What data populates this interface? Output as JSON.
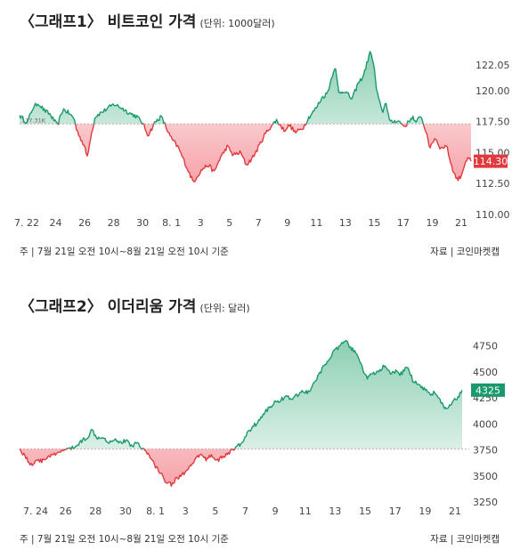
{
  "chart_data": [
    {
      "type": "area",
      "title": "〈그래프1〉 비트코인 가격",
      "unit": "(단위: 1000달러)",
      "x_ticks": [
        "7. 22",
        "24",
        "26",
        "28",
        "30",
        "8. 1",
        "3",
        "5",
        "7",
        "9",
        "11",
        "13",
        "15",
        "17",
        "19",
        "21"
      ],
      "y_ticks": [
        "122.05",
        "120.00",
        "117.50",
        "115.00",
        "112.50",
        "110.00"
      ],
      "ylim": [
        110.0,
        123.0
      ],
      "baseline": 117.31,
      "baseline_label": "117.31K",
      "last_value": 114.3,
      "last_label": "114.30",
      "anchors": [
        [
          0,
          118.0
        ],
        [
          0.04,
          117.4
        ],
        [
          0.07,
          118.6
        ],
        [
          0.1,
          119.0
        ],
        [
          0.13,
          118.4
        ],
        [
          0.16,
          118.1
        ],
        [
          0.2,
          117.2
        ],
        [
          0.23,
          118.5
        ],
        [
          0.26,
          118.2
        ],
        [
          0.29,
          117.7
        ],
        [
          0.3,
          116.9
        ],
        [
          0.34,
          115.6
        ],
        [
          0.36,
          114.6
        ],
        [
          0.37,
          115.8
        ],
        [
          0.4,
          117.9
        ],
        [
          0.45,
          118.4
        ],
        [
          0.5,
          118.9
        ],
        [
          0.54,
          118.6
        ],
        [
          0.58,
          118.2
        ],
        [
          0.62,
          117.9
        ],
        [
          0.65,
          117.4
        ],
        [
          0.68,
          116.4
        ],
        [
          0.72,
          117.5
        ],
        [
          0.75,
          117.9
        ],
        [
          0.8,
          116.2
        ],
        [
          0.84,
          115.4
        ],
        [
          0.88,
          114.0
        ],
        [
          0.9,
          113.3
        ],
        [
          0.92,
          112.6
        ],
        [
          0.94,
          113.1
        ],
        [
          0.97,
          113.7
        ],
        [
          1.0,
          114.0
        ],
        [
          1.03,
          113.4
        ],
        [
          1.06,
          114.5
        ],
        [
          1.1,
          115.5
        ],
        [
          1.13,
          114.8
        ],
        [
          1.17,
          115.0
        ],
        [
          1.2,
          114.0
        ],
        [
          1.23,
          114.5
        ],
        [
          1.26,
          115.3
        ],
        [
          1.3,
          116.5
        ],
        [
          1.33,
          117.1
        ],
        [
          1.36,
          117.6
        ],
        [
          1.4,
          116.8
        ],
        [
          1.43,
          117.2
        ],
        [
          1.46,
          116.6
        ],
        [
          1.5,
          117.0
        ],
        [
          1.53,
          117.8
        ],
        [
          1.57,
          118.6
        ],
        [
          1.6,
          119.4
        ],
        [
          1.63,
          119.8
        ],
        [
          1.66,
          121.5
        ],
        [
          1.67,
          122.0
        ],
        [
          1.69,
          119.8
        ],
        [
          1.72,
          120.0
        ],
        [
          1.76,
          119.3
        ],
        [
          1.79,
          120.5
        ],
        [
          1.82,
          121.2
        ],
        [
          1.85,
          122.8
        ],
        [
          1.86,
          123.2
        ],
        [
          1.88,
          121.5
        ],
        [
          1.89,
          120.0
        ],
        [
          1.92,
          118.2
        ],
        [
          1.94,
          119.1
        ],
        [
          1.96,
          117.4
        ],
        [
          2.0,
          117.6
        ],
        [
          2.04,
          117.1
        ],
        [
          2.08,
          117.9
        ],
        [
          2.1,
          117.3
        ],
        [
          2.12,
          118.1
        ],
        [
          2.15,
          116.8
        ],
        [
          2.17,
          115.4
        ],
        [
          2.2,
          116.2
        ],
        [
          2.23,
          115.3
        ],
        [
          2.26,
          115.6
        ],
        [
          2.28,
          114.3
        ],
        [
          2.3,
          113.3
        ],
        [
          2.32,
          112.8
        ],
        [
          2.34,
          113.2
        ],
        [
          2.36,
          114.3
        ],
        [
          2.38,
          114.5
        ],
        [
          2.39,
          114.3
        ]
      ]
    },
    {
      "type": "area",
      "title": "〈그래프2〉 이더리움 가격",
      "unit": "(단위: 달러)",
      "x_ticks": [
        "7. 24",
        "26",
        "28",
        "30",
        "8. 1",
        "3",
        "5",
        "7",
        "9",
        "11",
        "13",
        "15",
        "17",
        "19",
        "21"
      ],
      "y_ticks": [
        "4750",
        "4500",
        "4250",
        "4000",
        "3750",
        "3500",
        "3250"
      ],
      "ylim": [
        3250,
        4850
      ],
      "baseline": 3760,
      "last_value": 4325,
      "last_label": "4325",
      "anchors": [
        [
          0,
          3760
        ],
        [
          0.03,
          3690
        ],
        [
          0.06,
          3600
        ],
        [
          0.09,
          3660
        ],
        [
          0.12,
          3640
        ],
        [
          0.15,
          3690
        ],
        [
          0.18,
          3700
        ],
        [
          0.21,
          3720
        ],
        [
          0.24,
          3760
        ],
        [
          0.27,
          3760
        ],
        [
          0.3,
          3790
        ],
        [
          0.33,
          3840
        ],
        [
          0.36,
          3880
        ],
        [
          0.38,
          3940
        ],
        [
          0.41,
          3870
        ],
        [
          0.44,
          3880
        ],
        [
          0.47,
          3820
        ],
        [
          0.5,
          3860
        ],
        [
          0.53,
          3820
        ],
        [
          0.56,
          3840
        ],
        [
          0.59,
          3790
        ],
        [
          0.62,
          3820
        ],
        [
          0.65,
          3760
        ],
        [
          0.68,
          3700
        ],
        [
          0.71,
          3610
        ],
        [
          0.74,
          3530
        ],
        [
          0.77,
          3450
        ],
        [
          0.8,
          3420
        ],
        [
          0.83,
          3480
        ],
        [
          0.86,
          3520
        ],
        [
          0.89,
          3560
        ],
        [
          0.92,
          3640
        ],
        [
          0.95,
          3710
        ],
        [
          0.98,
          3660
        ],
        [
          1.01,
          3700
        ],
        [
          1.04,
          3650
        ],
        [
          1.07,
          3680
        ],
        [
          1.1,
          3720
        ],
        [
          1.13,
          3760
        ],
        [
          1.16,
          3800
        ],
        [
          1.19,
          3880
        ],
        [
          1.22,
          3960
        ],
        [
          1.25,
          4010
        ],
        [
          1.28,
          4080
        ],
        [
          1.31,
          4150
        ],
        [
          1.34,
          4200
        ],
        [
          1.37,
          4230
        ],
        [
          1.4,
          4260
        ],
        [
          1.43,
          4240
        ],
        [
          1.46,
          4270
        ],
        [
          1.49,
          4320
        ],
        [
          1.52,
          4300
        ],
        [
          1.55,
          4390
        ],
        [
          1.58,
          4480
        ],
        [
          1.61,
          4580
        ],
        [
          1.64,
          4660
        ],
        [
          1.67,
          4720
        ],
        [
          1.7,
          4770
        ],
        [
          1.72,
          4790
        ],
        [
          1.75,
          4720
        ],
        [
          1.78,
          4650
        ],
        [
          1.8,
          4560
        ],
        [
          1.83,
          4440
        ],
        [
          1.86,
          4480
        ],
        [
          1.89,
          4500
        ],
        [
          1.92,
          4560
        ],
        [
          1.95,
          4480
        ],
        [
          1.98,
          4500
        ],
        [
          2.01,
          4480
        ],
        [
          2.04,
          4560
        ],
        [
          2.07,
          4420
        ],
        [
          2.1,
          4380
        ],
        [
          2.13,
          4340
        ],
        [
          2.16,
          4290
        ],
        [
          2.19,
          4300
        ],
        [
          2.22,
          4200
        ],
        [
          2.25,
          4130
        ],
        [
          2.28,
          4210
        ],
        [
          2.31,
          4250
        ],
        [
          2.33,
          4325
        ]
      ]
    }
  ],
  "footer": {
    "basis": "주 | 7월 21일 오전 10시~8월 21일 오전 10시 기준",
    "source": "자료 | 코인마켓캡"
  },
  "colors": {
    "up": "#1a9a6c",
    "down": "#e03a3e",
    "up_fill_top": "#7fcaaa",
    "down_fill_top": "#f59aa0",
    "badge_up": "#1a9a6c",
    "badge_down": "#e03a3e",
    "baseline": "#c9a8b0",
    "axis_text": "#444444"
  }
}
